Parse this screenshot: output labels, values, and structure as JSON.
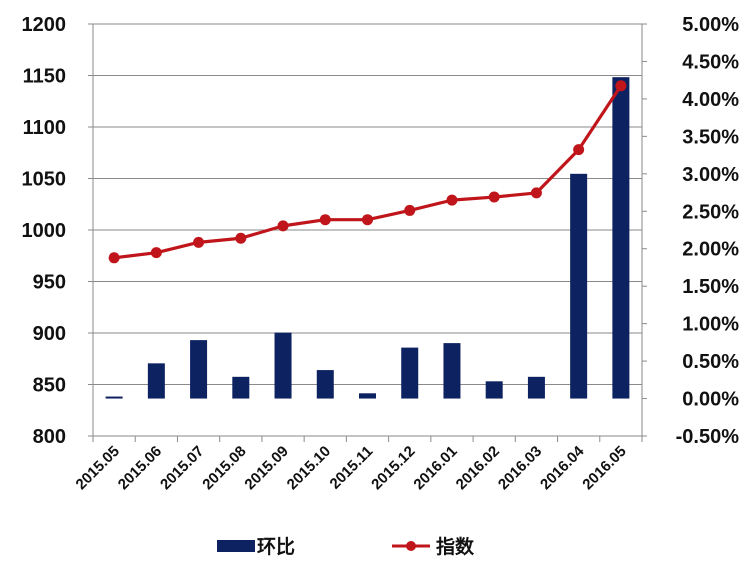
{
  "chart_data": {
    "type": "bar+line",
    "categories": [
      "2015.05",
      "2015.06",
      "2015.07",
      "2015.08",
      "2015.09",
      "2015.10",
      "2015.11",
      "2015.12",
      "2016.01",
      "2016.02",
      "2016.03",
      "2016.04",
      "2016.05"
    ],
    "series": [
      {
        "name": "环比",
        "type": "bar",
        "axis": "right",
        "color": "#0D2261",
        "values": [
          0.0,
          0.47,
          0.78,
          0.29,
          0.88,
          0.38,
          0.07,
          0.68,
          0.74,
          0.23,
          0.29,
          3.0,
          4.29
        ]
      },
      {
        "name": "指数",
        "type": "line",
        "axis": "left",
        "color": "#C0161B",
        "values": [
          973,
          978,
          988,
          992,
          1004,
          1010,
          1010,
          1019,
          1029,
          1032,
          1036,
          1078,
          1140
        ]
      }
    ],
    "y_left": {
      "ylim": [
        800,
        1200
      ],
      "ticks": [
        "800",
        "850",
        "900",
        "950",
        "1000",
        "1050",
        "1100",
        "1150",
        "1200"
      ]
    },
    "y_right": {
      "ylim": [
        -0.5,
        5.0
      ],
      "ticks": [
        "-0.50%",
        "0.00%",
        "0.50%",
        "1.00%",
        "1.50%",
        "2.00%",
        "2.50%",
        "3.00%",
        "3.50%",
        "4.00%",
        "4.50%",
        "5.00%"
      ]
    },
    "grid": "horizontal",
    "legend": "bottom"
  }
}
